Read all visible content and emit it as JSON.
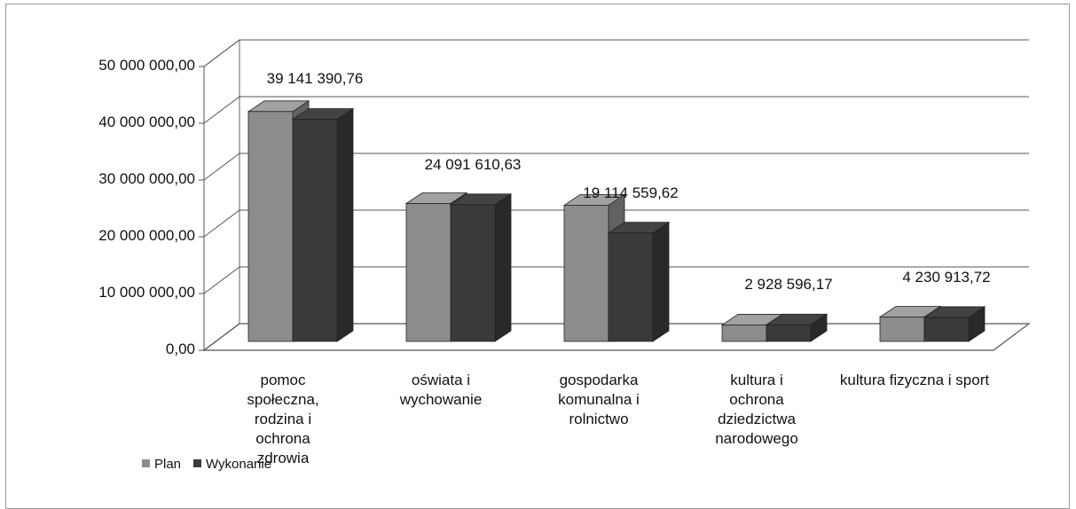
{
  "chart_data": {
    "type": "bar3d",
    "categories": [
      "pomoc społeczna, rodzina i ochrona zdrowia",
      "oświata i wychowanie",
      "gospodarka komunalna i rolnictwo",
      "kultura i ochrona dziedzictwa narodowego",
      "kultura fizyczna i sport"
    ],
    "series": [
      {
        "name": "Plan",
        "color": "#8c8c8c",
        "values": [
          40500000,
          24300000,
          24000000,
          2900000,
          4300000
        ]
      },
      {
        "name": "Wykonanie",
        "color": "#3a3a3a",
        "values": [
          39141390.76,
          24091610.63,
          19114559.62,
          2928596.17,
          4230913.72
        ],
        "value_labels": [
          "39 141 390,76",
          "24 091 610,63",
          "19 114 559,62",
          "2 928 596,17",
          "4 230 913,72"
        ]
      }
    ],
    "ylim": [
      0,
      50000000
    ],
    "yticks": [
      {
        "value": 0,
        "label": "0,00"
      },
      {
        "value": 10000000,
        "label": "10 000 000,00"
      },
      {
        "value": 20000000,
        "label": "20 000 000,00"
      },
      {
        "value": 30000000,
        "label": "30 000 000,00"
      },
      {
        "value": 40000000,
        "label": "40 000 000,00"
      },
      {
        "value": 50000000,
        "label": "50 000 000,00"
      }
    ],
    "grid": true,
    "legend": "bottom-left"
  }
}
